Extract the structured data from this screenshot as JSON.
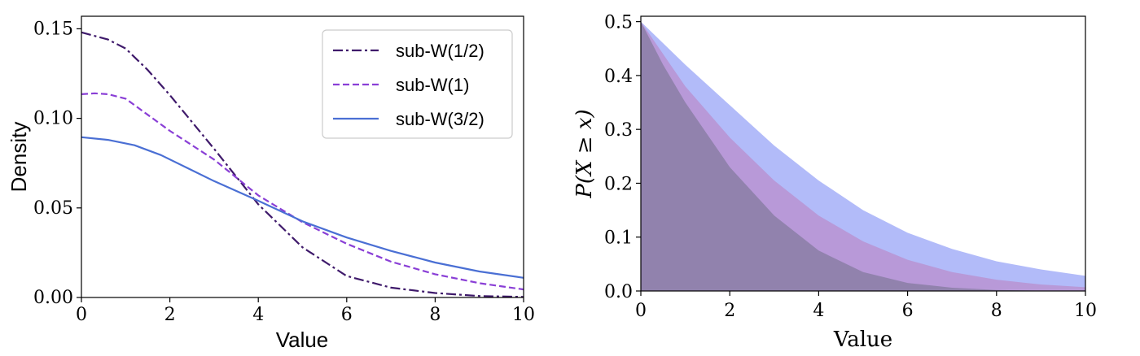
{
  "chart_data": [
    {
      "type": "line",
      "xlabel": "Value",
      "ylabel": "Density",
      "xlim": [
        0,
        10
      ],
      "ylim": [
        0,
        0.157
      ],
      "xticks": [
        "0",
        "2",
        "4",
        "6",
        "8",
        "10"
      ],
      "yticks": [
        "0.00",
        "0.05",
        "0.10",
        "0.15"
      ],
      "grid": false,
      "legend_position": "top-right",
      "series": [
        {
          "name": "sub-W(1/2)",
          "color": "#3f1a6b",
          "style": "dash-dot",
          "x": [
            0,
            0.6,
            1.0,
            1.5,
            2.0,
            3.0,
            4.0,
            5.0,
            6.0,
            7.0,
            8.0,
            9.0,
            10.0
          ],
          "y": [
            0.148,
            0.144,
            0.139,
            0.127,
            0.113,
            0.083,
            0.052,
            0.028,
            0.012,
            0.0055,
            0.0025,
            0.0008,
            0.0003
          ]
        },
        {
          "name": "sub-W(1)",
          "color": "#8a3fd6",
          "style": "dashed",
          "x": [
            0,
            0.3,
            0.6,
            1.0,
            1.5,
            2.0,
            3.0,
            4.0,
            5.0,
            6.0,
            7.0,
            8.0,
            9.0,
            10.0
          ],
          "y": [
            0.1135,
            0.114,
            0.1135,
            0.111,
            0.102,
            0.093,
            0.077,
            0.057,
            0.042,
            0.03,
            0.02,
            0.013,
            0.008,
            0.0045
          ]
        },
        {
          "name": "sub-W(3/2)",
          "color": "#4a6fd4",
          "style": "solid",
          "x": [
            0,
            0.6,
            1.2,
            1.8,
            2.5,
            3.0,
            4.0,
            5.0,
            6.0,
            7.0,
            8.0,
            9.0,
            10.0
          ],
          "y": [
            0.0895,
            0.088,
            0.085,
            0.0795,
            0.071,
            0.065,
            0.054,
            0.0425,
            0.0335,
            0.026,
            0.0195,
            0.0145,
            0.011
          ]
        }
      ]
    },
    {
      "type": "area",
      "xlabel": "Value",
      "ylabel": "P(X ≥ x)",
      "xlim": [
        0,
        10
      ],
      "ylim": [
        0,
        0.51
      ],
      "xticks": [
        "0",
        "2",
        "4",
        "6",
        "8",
        "10"
      ],
      "yticks": [
        "0.0",
        "0.1",
        "0.2",
        "0.3",
        "0.4",
        "0.5"
      ],
      "grid": false,
      "series": [
        {
          "color": "#aab4f8",
          "x": [
            0,
            1,
            2,
            3,
            4,
            5,
            6,
            7,
            8,
            9,
            10
          ],
          "y": [
            0.5,
            0.42,
            0.345,
            0.27,
            0.205,
            0.15,
            0.108,
            0.078,
            0.055,
            0.04,
            0.028
          ]
        },
        {
          "color": "#b896d4",
          "x": [
            0,
            1,
            2,
            3,
            4,
            5,
            6,
            7,
            8,
            9,
            10
          ],
          "y": [
            0.5,
            0.38,
            0.285,
            0.205,
            0.14,
            0.092,
            0.058,
            0.035,
            0.021,
            0.012,
            0.007
          ]
        },
        {
          "color": "#8d80a8",
          "x": [
            0,
            0.5,
            1,
            2,
            3,
            4,
            5,
            6,
            7,
            8,
            9,
            10
          ],
          "y": [
            0.5,
            0.42,
            0.35,
            0.23,
            0.14,
            0.075,
            0.035,
            0.015,
            0.006,
            0.002,
            0.0006,
            0.0002
          ]
        }
      ]
    }
  ]
}
